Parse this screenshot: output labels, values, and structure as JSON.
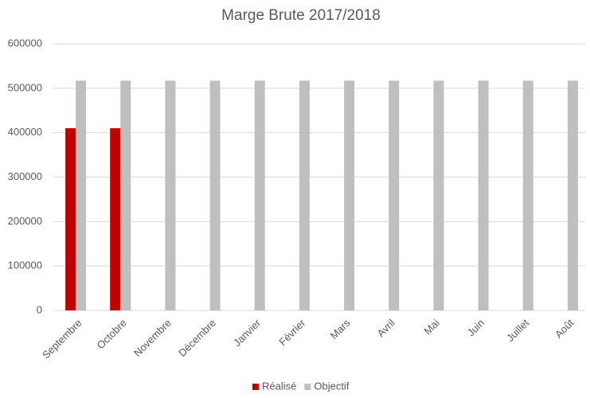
{
  "chart_data": {
    "type": "bar",
    "title": "Marge Brute 2017/2018",
    "categories": [
      "Septembre",
      "Octobre",
      "Novembre",
      "Décembre",
      "Janvier",
      "Février",
      "Mars",
      "Avril",
      "Mai",
      "Juin",
      "Juillet",
      "Août"
    ],
    "series": [
      {
        "name": "Réalisé",
        "color": "#c00000",
        "values": [
          410000,
          410000,
          null,
          null,
          null,
          null,
          null,
          null,
          null,
          null,
          null,
          null
        ]
      },
      {
        "name": "Objectif",
        "color": "#bfbfbf",
        "values": [
          517000,
          517000,
          517000,
          517000,
          517000,
          517000,
          517000,
          517000,
          517000,
          517000,
          517000,
          517000
        ]
      }
    ],
    "ylim": [
      0,
      600000
    ],
    "yticks": [
      0,
      100000,
      200000,
      300000,
      400000,
      500000,
      600000
    ],
    "grid": true,
    "legend": "bottom"
  }
}
